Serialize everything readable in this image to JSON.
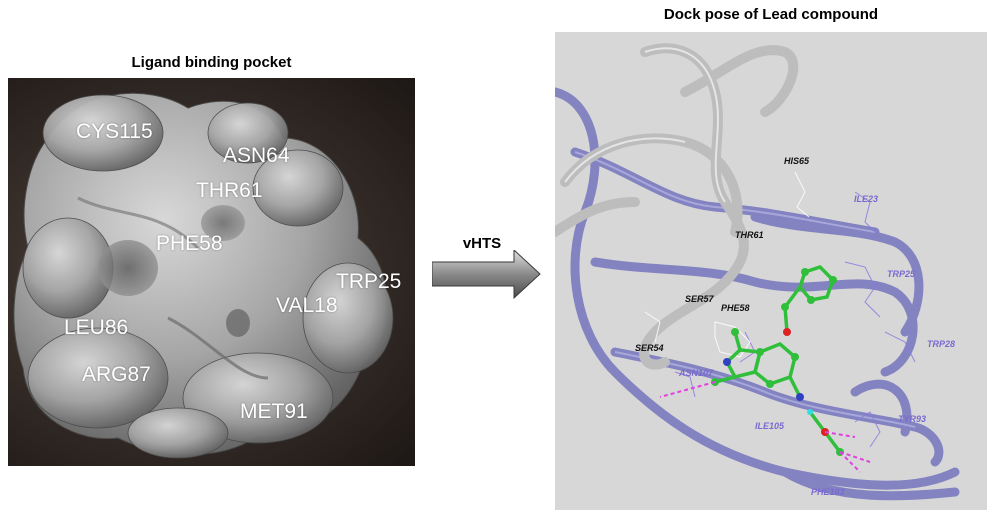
{
  "left": {
    "title": "Ligand binding pocket",
    "residues": [
      {
        "id": "cys115",
        "label": "CYS115"
      },
      {
        "id": "asn64",
        "label": "ASN64"
      },
      {
        "id": "thr61",
        "label": "THR61"
      },
      {
        "id": "phe58",
        "label": "PHE58"
      },
      {
        "id": "trp25",
        "label": "TRP25"
      },
      {
        "id": "val18",
        "label": "VAL18"
      },
      {
        "id": "leu86",
        "label": "LEU86"
      },
      {
        "id": "arg87",
        "label": "ARG87"
      },
      {
        "id": "met91",
        "label": "MET91"
      }
    ]
  },
  "arrow": {
    "label": "vHTS"
  },
  "right": {
    "title": "Dock pose of Lead compound",
    "residues_dark": [
      {
        "id": "his65",
        "label": "HIS65"
      },
      {
        "id": "thr61",
        "label": "THR61"
      },
      {
        "id": "ser57",
        "label": "SER57"
      },
      {
        "id": "phe58",
        "label": "PHE58"
      },
      {
        "id": "ser54",
        "label": "SER54"
      }
    ],
    "residues_purple": [
      {
        "id": "ile23",
        "label": "ILE23"
      },
      {
        "id": "trp25",
        "label": "TRP25"
      },
      {
        "id": "trp28",
        "label": "TRP28"
      },
      {
        "id": "asn107",
        "label": "ASN107"
      },
      {
        "id": "ile105",
        "label": "ILE105"
      },
      {
        "id": "tyr93",
        "label": "TYR93"
      },
      {
        "id": "phe103",
        "label": "PHE103"
      }
    ]
  },
  "colors": {
    "surface": "#a9a9a9",
    "ribbon_gray": "#c8c8c8",
    "ribbon_purple": "#7f7fc0",
    "ligand_carbon": "#2fbf3a",
    "hbond": "#e040e0"
  }
}
